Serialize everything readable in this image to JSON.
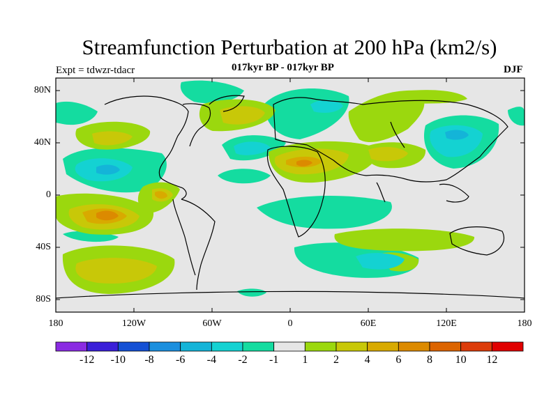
{
  "title": "Streamfunction Perturbation at 200 hPa (km2/s)",
  "left_string": "Expt = tdwzr-tdacr",
  "center_string": "017kyr BP - 017kyr BP",
  "right_string": "DJF",
  "lat_labels": [
    "80N",
    "40N",
    "0",
    "40S",
    "80S"
  ],
  "lon_labels": [
    "180",
    "120W",
    "60W",
    "0",
    "60E",
    "120E",
    "180"
  ],
  "colorbar": {
    "colors": [
      "#8a2be2",
      "#3a1fd8",
      "#1450d4",
      "#1b8fde",
      "#14b4d8",
      "#14d2d2",
      "#14dca0",
      "#e6e6e6",
      "#9bd80e",
      "#c8c808",
      "#d8aa00",
      "#dc8a00",
      "#dc6400",
      "#dc3c0a",
      "#e00000"
    ],
    "labels": [
      "-12",
      "-10",
      "-8",
      "-6",
      "-4",
      "-2",
      "-1",
      "1",
      "2",
      "4",
      "6",
      "8",
      "10",
      "12"
    ]
  }
}
